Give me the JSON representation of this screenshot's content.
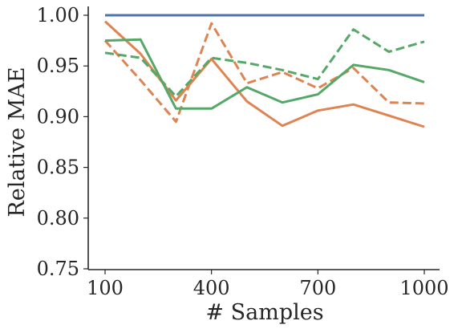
{
  "chart_data": {
    "type": "line",
    "title": "",
    "xlabel": "# Samples",
    "ylabel": "Relative MAE",
    "x": [
      100,
      200,
      300,
      400,
      500,
      600,
      700,
      800,
      900,
      1000
    ],
    "xticks": [
      100,
      400,
      700,
      1000
    ],
    "xtick_labels": [
      "100",
      "400",
      "700",
      "1000"
    ],
    "yticks": [
      0.75,
      0.8,
      0.85,
      0.9,
      0.95,
      1.0
    ],
    "ytick_labels": [
      "0.75",
      "0.80",
      "0.85",
      "0.90",
      "0.95",
      "1.00"
    ],
    "xlim": [
      100,
      1000
    ],
    "ylim": [
      0.75,
      1.0
    ],
    "grid": false,
    "legend": "none",
    "series": [
      {
        "color": "#4c72b0",
        "style": "solid",
        "values": [
          1.0,
          1.0,
          1.0,
          1.0,
          1.0,
          1.0,
          1.0,
          1.0,
          1.0,
          1.0
        ]
      },
      {
        "color": "#dd8452",
        "style": "solid",
        "values": [
          0.994,
          0.962,
          0.916,
          0.957,
          0.915,
          0.891,
          0.906,
          0.912,
          0.901,
          0.89
        ]
      },
      {
        "color": "#dd8452",
        "style": "dashed",
        "values": [
          0.975,
          0.936,
          0.895,
          0.992,
          0.933,
          0.944,
          0.928,
          0.948,
          0.914,
          0.913
        ]
      },
      {
        "color": "#55a868",
        "style": "solid",
        "values": [
          0.975,
          0.976,
          0.908,
          0.908,
          0.929,
          0.914,
          0.922,
          0.951,
          0.946,
          0.934
        ]
      },
      {
        "color": "#55a868",
        "style": "dashed",
        "values": [
          0.963,
          0.958,
          0.92,
          0.958,
          0.953,
          0.946,
          0.937,
          0.986,
          0.964,
          0.974
        ]
      }
    ]
  }
}
